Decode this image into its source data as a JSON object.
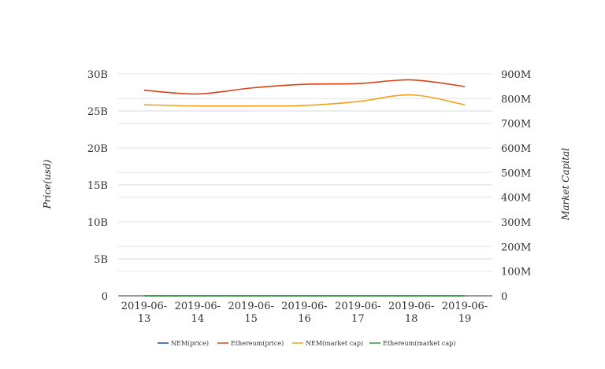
{
  "chart_data": {
    "type": "line",
    "title": "",
    "x": [
      "2019-06-13",
      "2019-06-14",
      "2019-06-15",
      "2019-06-16",
      "2019-06-17",
      "2019-06-18",
      "2019-06-19"
    ],
    "x_tick_lines": [
      [
        "2019-06-",
        "13"
      ],
      [
        "2019-06-",
        "14"
      ],
      [
        "2019-06-",
        "15"
      ],
      [
        "2019-06-",
        "16"
      ],
      [
        "2019-06-",
        "17"
      ],
      [
        "2019-06-",
        "18"
      ],
      [
        "2019-06-",
        "19"
      ]
    ],
    "ylabel": "Price(usd)",
    "y2label": "Market Capital",
    "ylim": [
      0,
      30000000000
    ],
    "y2lim": [
      0,
      900000000
    ],
    "y_ticks": [
      {
        "value": 0,
        "label": "0"
      },
      {
        "value": 5000000000,
        "label": "5B"
      },
      {
        "value": 10000000000,
        "label": "10B"
      },
      {
        "value": 15000000000,
        "label": "15B"
      },
      {
        "value": 20000000000,
        "label": "20B"
      },
      {
        "value": 25000000000,
        "label": "25B"
      },
      {
        "value": 30000000000,
        "label": "30B"
      }
    ],
    "y2_ticks": [
      {
        "value": 0,
        "label": "0"
      },
      {
        "value": 100000000,
        "label": "100M"
      },
      {
        "value": 200000000,
        "label": "200M"
      },
      {
        "value": 300000000,
        "label": "300M"
      },
      {
        "value": 400000000,
        "label": "400M"
      },
      {
        "value": 500000000,
        "label": "500M"
      },
      {
        "value": 600000000,
        "label": "600M"
      },
      {
        "value": 700000000,
        "label": "700M"
      },
      {
        "value": 800000000,
        "label": "800M"
      },
      {
        "value": 900000000,
        "label": "900M"
      }
    ],
    "grid": true,
    "legend_position": "bottom",
    "series": [
      {
        "name": "NEM(price)",
        "axis": "left",
        "color": "#1f4e9c",
        "values": [
          0.09,
          0.09,
          0.09,
          0.09,
          0.09,
          0.09,
          0.09
        ]
      },
      {
        "name": "Ethereum(price)",
        "axis": "left",
        "color": "#d84315",
        "values": [
          27800000000,
          27300000000,
          28100000000,
          28600000000,
          28700000000,
          29200000000,
          28300000000
        ]
      },
      {
        "name": "NEM(market cap)",
        "axis": "right",
        "color": "#f59f1c",
        "values": [
          775000000,
          770000000,
          770000000,
          772000000,
          788000000,
          815000000,
          775000000
        ]
      },
      {
        "name": "Ethereum(market cap)",
        "axis": "right",
        "color": "#2e9a2e",
        "values": [
          1,
          1,
          1,
          1,
          1,
          1,
          1
        ]
      }
    ]
  }
}
